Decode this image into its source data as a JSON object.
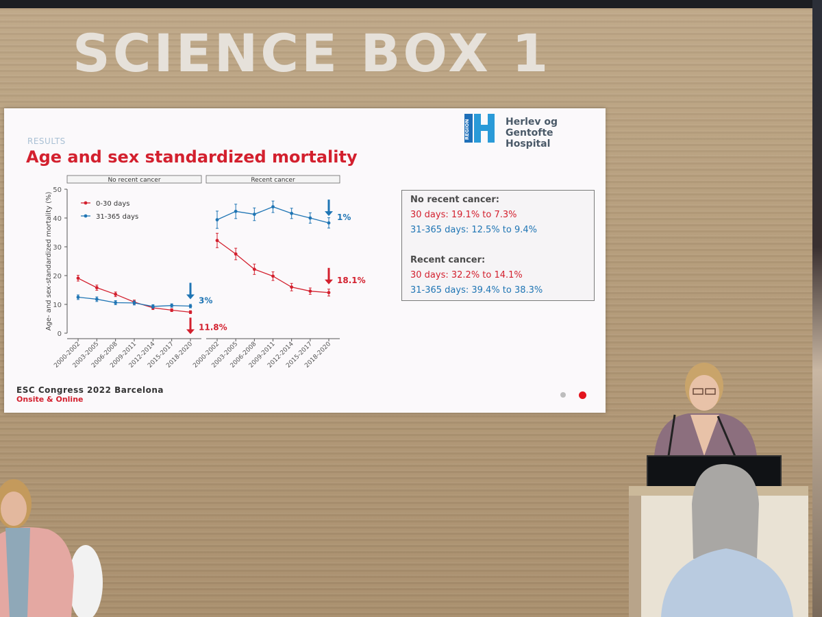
{
  "booth_title": "SCIENCE BOX 1",
  "slide": {
    "section": "RESULTS",
    "title": "Age and sex standardized mortality",
    "logo_lines": [
      "Herlev og Gentofte",
      "Hospital"
    ],
    "logo_side": "REGION",
    "footer_line1": "ESC Congress 2022 Barcelona",
    "footer_line2": "Onsite & Online"
  },
  "summary_box": {
    "no_recent_heading": "No recent cancer:",
    "no_recent_30": "30 days: 19.1% to 7.3%",
    "no_recent_365": "31-365 days: 12.5% to 9.4%",
    "recent_heading": "Recent cancer:",
    "recent_30": "30 days: 32.2% to 14.1%",
    "recent_365": "31-365 days: 39.4% to 38.3%"
  },
  "colors": {
    "red": "#d3202e",
    "blue": "#1f75b4"
  },
  "chart_data": {
    "type": "line",
    "ylabel": "Age- and sex-standardized mortality (%)",
    "ylim": [
      0,
      50
    ],
    "yticks": [
      0,
      10,
      20,
      30,
      40,
      50
    ],
    "categories": [
      "2000-2002",
      "2003-2005",
      "2006-2008",
      "2009-2011",
      "2012-2014",
      "2015-2017",
      "2018-2020"
    ],
    "legend": [
      "0-30 days",
      "31-365 days"
    ],
    "legend_placement": "top-left",
    "panels": [
      {
        "name": "No recent cancer",
        "series": [
          {
            "name": "0-30 days",
            "color": "#d3202e",
            "values": [
              19.1,
              15.8,
              13.5,
              10.8,
              8.8,
              8.0,
              7.3
            ],
            "err": [
              1.0,
              0.9,
              0.8,
              0.7,
              0.6,
              0.5,
              0.5
            ]
          },
          {
            "name": "31-365 days",
            "color": "#1f75b4",
            "values": [
              12.5,
              11.8,
              10.6,
              10.5,
              9.3,
              9.6,
              9.4
            ],
            "err": [
              0.8,
              0.8,
              0.7,
              0.7,
              0.6,
              0.6,
              0.6
            ]
          }
        ],
        "annotations": [
          {
            "text": "3%",
            "color": "#1f75b4"
          },
          {
            "text": "11.8%",
            "color": "#d3202e"
          }
        ]
      },
      {
        "name": "Recent cancer",
        "series": [
          {
            "name": "0-30 days",
            "color": "#d3202e",
            "values": [
              32.2,
              27.5,
              22.2,
              19.8,
              16.0,
              14.6,
              14.1
            ],
            "err": [
              2.5,
              2.0,
              1.8,
              1.5,
              1.3,
              1.1,
              1.2
            ]
          },
          {
            "name": "31-365 days",
            "color": "#1f75b4",
            "values": [
              39.4,
              42.3,
              41.3,
              43.9,
              41.6,
              40.0,
              38.3
            ],
            "err": [
              3.0,
              2.5,
              2.2,
              2.0,
              1.8,
              1.8,
              1.8
            ]
          }
        ],
        "annotations": [
          {
            "text": "1%",
            "color": "#1f75b4"
          },
          {
            "text": "18.1%",
            "color": "#d3202e"
          }
        ]
      }
    ]
  }
}
